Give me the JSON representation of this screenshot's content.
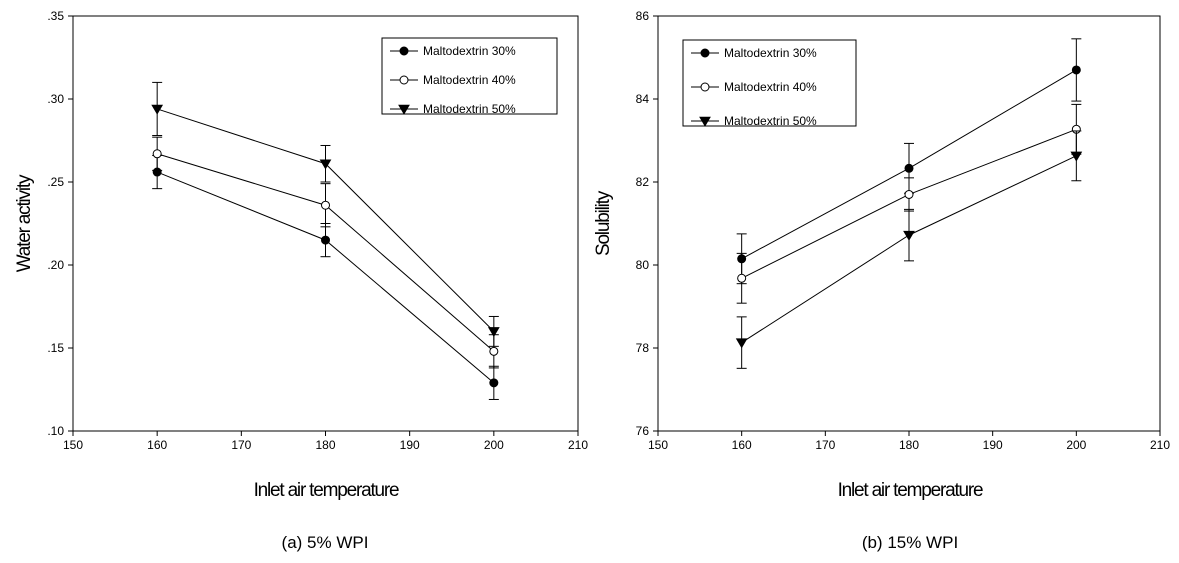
{
  "chart_data": [
    {
      "type": "line",
      "caption": "(a) 5% WPI",
      "xlabel": "Inlet air temperature",
      "ylabel": "Water activity",
      "xlim": [
        150,
        210
      ],
      "ylim": [
        0.1,
        0.35
      ],
      "xticks": [
        150,
        160,
        170,
        180,
        190,
        200,
        210
      ],
      "xtick_labels": [
        "150",
        "160",
        "170",
        "180",
        "190",
        "200",
        "210"
      ],
      "yticks": [
        0.1,
        0.15,
        0.2,
        0.25,
        0.3,
        0.35
      ],
      "ytick_labels": [
        ".10",
        ".15",
        ".20",
        ".25",
        ".30",
        ".35"
      ],
      "legend_position": "top-right",
      "x": [
        160,
        180,
        200
      ],
      "series": [
        {
          "name": "Maltodextrin 30%",
          "marker": "filled-circle",
          "values": [
            0.256,
            0.215,
            0.129
          ],
          "errors": [
            0.01,
            0.01,
            0.01
          ]
        },
        {
          "name": "Maltodextrin 40%",
          "marker": "open-circle",
          "values": [
            0.267,
            0.236,
            0.148
          ],
          "errors": [
            0.01,
            0.013,
            0.01
          ]
        },
        {
          "name": "Maltodextrin 50%",
          "marker": "filled-triangle-down",
          "values": [
            0.294,
            0.261,
            0.16
          ],
          "errors": [
            0.016,
            0.011,
            0.009
          ]
        }
      ]
    },
    {
      "type": "line",
      "caption": "(b) 15% WPI",
      "xlabel": "Inlet air temperature",
      "ylabel": "Solubility",
      "xlim": [
        150,
        210
      ],
      "ylim": [
        76,
        86
      ],
      "xticks": [
        150,
        160,
        170,
        180,
        190,
        200,
        210
      ],
      "xtick_labels": [
        "150",
        "160",
        "170",
        "180",
        "190",
        "200",
        "210"
      ],
      "yticks": [
        76,
        78,
        80,
        82,
        84,
        86
      ],
      "ytick_labels": [
        "76",
        "78",
        "80",
        "82",
        "84",
        "86"
      ],
      "legend_position": "top-left",
      "x": [
        160,
        180,
        200
      ],
      "series": [
        {
          "name": "Maltodextrin 30%",
          "marker": "filled-circle",
          "values": [
            80.15,
            82.33,
            84.7
          ],
          "errors": [
            0.6,
            0.6,
            0.75
          ]
        },
        {
          "name": "Maltodextrin 40%",
          "marker": "open-circle",
          "values": [
            79.68,
            81.7,
            83.27
          ],
          "errors": [
            0.6,
            0.4,
            0.6
          ]
        },
        {
          "name": "Maltodextrin 50%",
          "marker": "filled-triangle-down",
          "values": [
            78.13,
            80.72,
            82.63
          ],
          "errors": [
            0.62,
            0.62,
            0.6
          ]
        }
      ]
    }
  ]
}
